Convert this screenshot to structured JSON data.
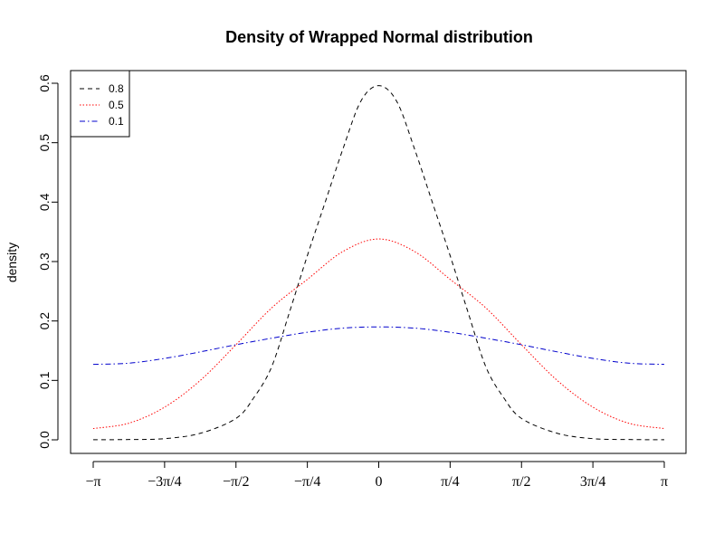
{
  "chart_data": {
    "type": "line",
    "title": "Density of Wrapped Normal distribution",
    "xlabel": "",
    "ylabel": "density",
    "xlim": [
      -3.1416,
      3.1416
    ],
    "ylim": [
      0,
      0.6
    ],
    "grid": false,
    "legend_position": "top-left",
    "x_ticks": [
      {
        "value": -3.1416,
        "label": "−π"
      },
      {
        "value": -2.3562,
        "label": "−3π/4"
      },
      {
        "value": -1.5708,
        "label": "−π/2"
      },
      {
        "value": -0.7854,
        "label": "−π/4"
      },
      {
        "value": 0,
        "label": "0"
      },
      {
        "value": 0.7854,
        "label": "π/4"
      },
      {
        "value": 1.5708,
        "label": "π/2"
      },
      {
        "value": 2.3562,
        "label": "3π/4"
      },
      {
        "value": 3.1416,
        "label": "π"
      }
    ],
    "y_ticks": [
      {
        "value": 0.0,
        "label": "0.0"
      },
      {
        "value": 0.1,
        "label": "0.1"
      },
      {
        "value": 0.2,
        "label": "0.2"
      },
      {
        "value": 0.3,
        "label": "0.3"
      },
      {
        "value": 0.4,
        "label": "0.4"
      },
      {
        "value": 0.5,
        "label": "0.5"
      },
      {
        "value": 0.6,
        "label": "0.6"
      }
    ],
    "series": [
      {
        "name": "0.8",
        "color": "#000000",
        "dash": "dashed",
        "x": [
          -3.1416,
          -2.7489,
          -2.3562,
          -1.9635,
          -1.5708,
          -1.3744,
          -1.1781,
          -0.9817,
          -0.7854,
          -0.589,
          -0.3927,
          -0.1963,
          0,
          0.1963,
          0.3927,
          0.589,
          0.7854,
          0.9817,
          1.1781,
          1.3744,
          1.5708,
          1.9635,
          2.3562,
          2.7489,
          3.1416
        ],
        "y": [
          0.0002,
          0.0005,
          0.002,
          0.011,
          0.036,
          0.071,
          0.123,
          0.215,
          0.31,
          0.4,
          0.49,
          0.57,
          0.596,
          0.57,
          0.49,
          0.4,
          0.31,
          0.215,
          0.123,
          0.071,
          0.036,
          0.011,
          0.002,
          0.0005,
          0.0002
        ]
      },
      {
        "name": "0.5",
        "color": "#ff0000",
        "dash": "dotted",
        "x": [
          -3.1416,
          -2.7489,
          -2.3562,
          -1.9635,
          -1.5708,
          -1.1781,
          -0.7854,
          -0.3927,
          0,
          0.3927,
          0.7854,
          1.1781,
          1.5708,
          1.9635,
          2.3562,
          2.7489,
          3.1416
        ],
        "y": [
          0.019,
          0.028,
          0.055,
          0.1,
          0.16,
          0.222,
          0.27,
          0.317,
          0.338,
          0.317,
          0.27,
          0.222,
          0.16,
          0.1,
          0.055,
          0.028,
          0.019
        ]
      },
      {
        "name": "0.1",
        "color": "#0000cc",
        "dash": "dashdot",
        "x": [
          -3.1416,
          -2.7489,
          -2.3562,
          -1.9635,
          -1.5708,
          -1.1781,
          -0.7854,
          -0.3927,
          0,
          0.3927,
          0.7854,
          1.1781,
          1.5708,
          1.9635,
          2.3562,
          2.7489,
          3.1416
        ],
        "y": [
          0.127,
          0.129,
          0.137,
          0.148,
          0.16,
          0.171,
          0.181,
          0.188,
          0.19,
          0.188,
          0.181,
          0.171,
          0.16,
          0.148,
          0.137,
          0.129,
          0.127
        ]
      }
    ]
  }
}
